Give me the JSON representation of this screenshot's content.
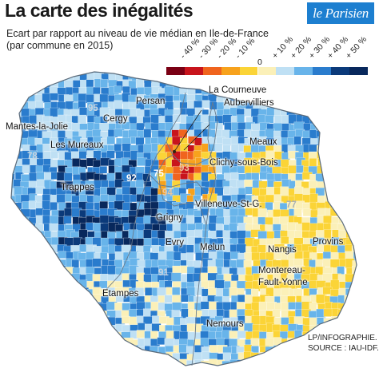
{
  "header": {
    "title": "La carte des inégalités",
    "logo_text": "le Parisien",
    "subtitle_line1": "Ecart par rapport au niveau de vie médian en Ile-de-France",
    "subtitle_line2": "(par commune en 2015)"
  },
  "legend": {
    "labels": [
      "- 40 %",
      "- 30 %",
      "- 20 %",
      "- 10 %",
      "0",
      "+ 10 %",
      "+ 20 %",
      "+ 30 %",
      "+ 40 %",
      "+ 50 %"
    ],
    "colors": [
      "#7a0014",
      "#c8141c",
      "#f0641e",
      "#f7a21d",
      "#fbd437",
      "#fbf0b8",
      "#bfe0f4",
      "#68b4ea",
      "#2a7ccd",
      "#0b3a7a",
      "#08285c"
    ]
  },
  "map": {
    "cities": [
      "La Courneuve",
      "Aubervilliers",
      "Persan",
      "Cergy",
      "Mantes-la-Jolie",
      "Les Mureaux",
      "Meaux",
      "Clichy-sous-Bois",
      "Trappes",
      "Villeneuve-St-G.",
      "Grigny",
      "Evry",
      "Melun",
      "Nangis",
      "Provins",
      "Montereau-",
      "Fault-Yonne",
      "Etampes",
      "Nemours"
    ],
    "departments": [
      "95",
      "78",
      "92",
      "75",
      "93",
      "94",
      "77",
      "91"
    ]
  },
  "footer": {
    "credit_line1": "LP/INFOGRAPHIE.",
    "credit_line2": "SOURCE : IAU-IDF."
  }
}
